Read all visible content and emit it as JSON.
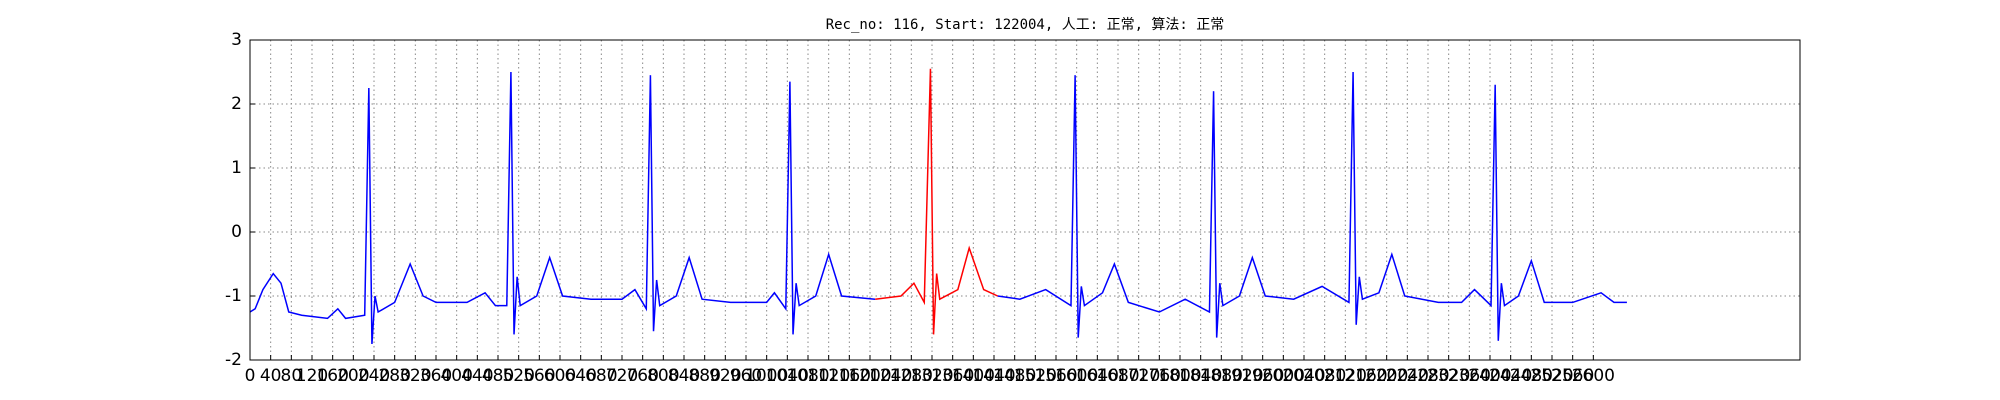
{
  "chart_data": {
    "type": "line",
    "title": "Rec_no: 116, Start: 122004, 人工: 正常, 算法: 正常",
    "xlim": [
      0,
      3000
    ],
    "ylim": [
      -2,
      3
    ],
    "yticks": [
      -2,
      -1,
      0,
      1,
      2,
      3
    ],
    "xticks": [
      0,
      40,
      80,
      120,
      160,
      200,
      240,
      280,
      320,
      360,
      400,
      440,
      480,
      520,
      560,
      600,
      640,
      680,
      720,
      760,
      800,
      840,
      880,
      920,
      960,
      1000,
      1040,
      1080,
      1120,
      1160,
      1200,
      1240,
      1280,
      1320,
      1360,
      1400,
      1440,
      1480,
      1520,
      1560,
      1600,
      1640,
      1680,
      1720,
      1760,
      1800,
      1840,
      1880,
      1920,
      1960,
      2000,
      2040,
      2080,
      2120,
      2160,
      2200,
      2240,
      2280,
      2320,
      2360,
      2400,
      2440,
      2480,
      2520,
      2560,
      2600
    ],
    "grid": true,
    "series": [
      {
        "color": "#0000ff",
        "x": [
          0,
          10,
          25,
          45,
          60,
          75,
          100,
          150,
          170,
          185,
          222,
          230,
          236,
          242,
          248,
          280,
          310,
          335,
          360,
          420,
          455,
          475,
          497,
          505,
          511,
          517,
          523,
          555,
          580,
          605,
          660,
          720,
          745,
          767,
          775,
          781,
          787,
          793,
          825,
          850,
          875,
          930,
          1000,
          1015,
          1037,
          1045,
          1051,
          1057,
          1063,
          1095,
          1120,
          1145,
          1210,
          1300,
          1447,
          1490,
          1540,
          1589,
          1597,
          1603,
          1609,
          1615,
          1650,
          1673,
          1700,
          1760,
          1810,
          1857,
          1865,
          1871,
          1877,
          1883,
          1915,
          1940,
          1965,
          2020,
          2075,
          2127,
          2135,
          2141,
          2147,
          2153,
          2185,
          2210,
          2235,
          2300,
          2345,
          2370,
          2402,
          2410,
          2416,
          2422,
          2428,
          2455,
          2480,
          2505,
          2560,
          2615,
          2640,
          2665
        ],
        "values": [
          -1.25,
          -1.2,
          -0.9,
          -0.65,
          -0.8,
          -1.25,
          -1.3,
          -1.35,
          -1.2,
          -1.35,
          -1.3,
          2.25,
          -1.75,
          -1.0,
          -1.25,
          -1.1,
          -0.5,
          -1.0,
          -1.1,
          -1.1,
          -0.95,
          -1.15,
          -1.15,
          2.5,
          -1.6,
          -0.7,
          -1.15,
          -1.0,
          -0.4,
          -1.0,
          -1.05,
          -1.05,
          -0.9,
          -1.2,
          2.45,
          -1.55,
          -0.75,
          -1.15,
          -1.0,
          -0.4,
          -1.05,
          -1.1,
          -1.1,
          -0.95,
          -1.2,
          2.35,
          -1.6,
          -0.8,
          -1.15,
          -1.0,
          -0.35,
          -1.0,
          -1.05,
          null,
          -1.0,
          -1.05,
          -0.9,
          -1.15,
          2.45,
          -1.65,
          -0.85,
          -1.15,
          -0.95,
          -0.5,
          -1.1,
          -1.25,
          -1.05,
          -1.25,
          2.2,
          -1.65,
          -0.8,
          -1.15,
          -1.0,
          -0.4,
          -1.0,
          -1.05,
          -0.85,
          -1.1,
          2.5,
          -1.45,
          -0.7,
          -1.05,
          -0.95,
          -0.35,
          -1.0,
          -1.1,
          -1.1,
          -0.9,
          -1.15,
          2.3,
          -1.7,
          -0.8,
          -1.15,
          -1.0,
          -0.45,
          -1.1,
          -1.1,
          -0.95,
          -1.1,
          -1.1
        ]
      },
      {
        "color": "#ff0000",
        "x": [
          1210,
          1260,
          1285,
          1305,
          1317,
          1323,
          1329,
          1335,
          1370,
          1392,
          1420,
          1447
        ],
        "values": [
          -1.05,
          -1.0,
          -0.8,
          -1.1,
          2.55,
          -1.6,
          -0.65,
          -1.05,
          -0.9,
          -0.25,
          -0.9,
          -1.0
        ]
      }
    ]
  }
}
